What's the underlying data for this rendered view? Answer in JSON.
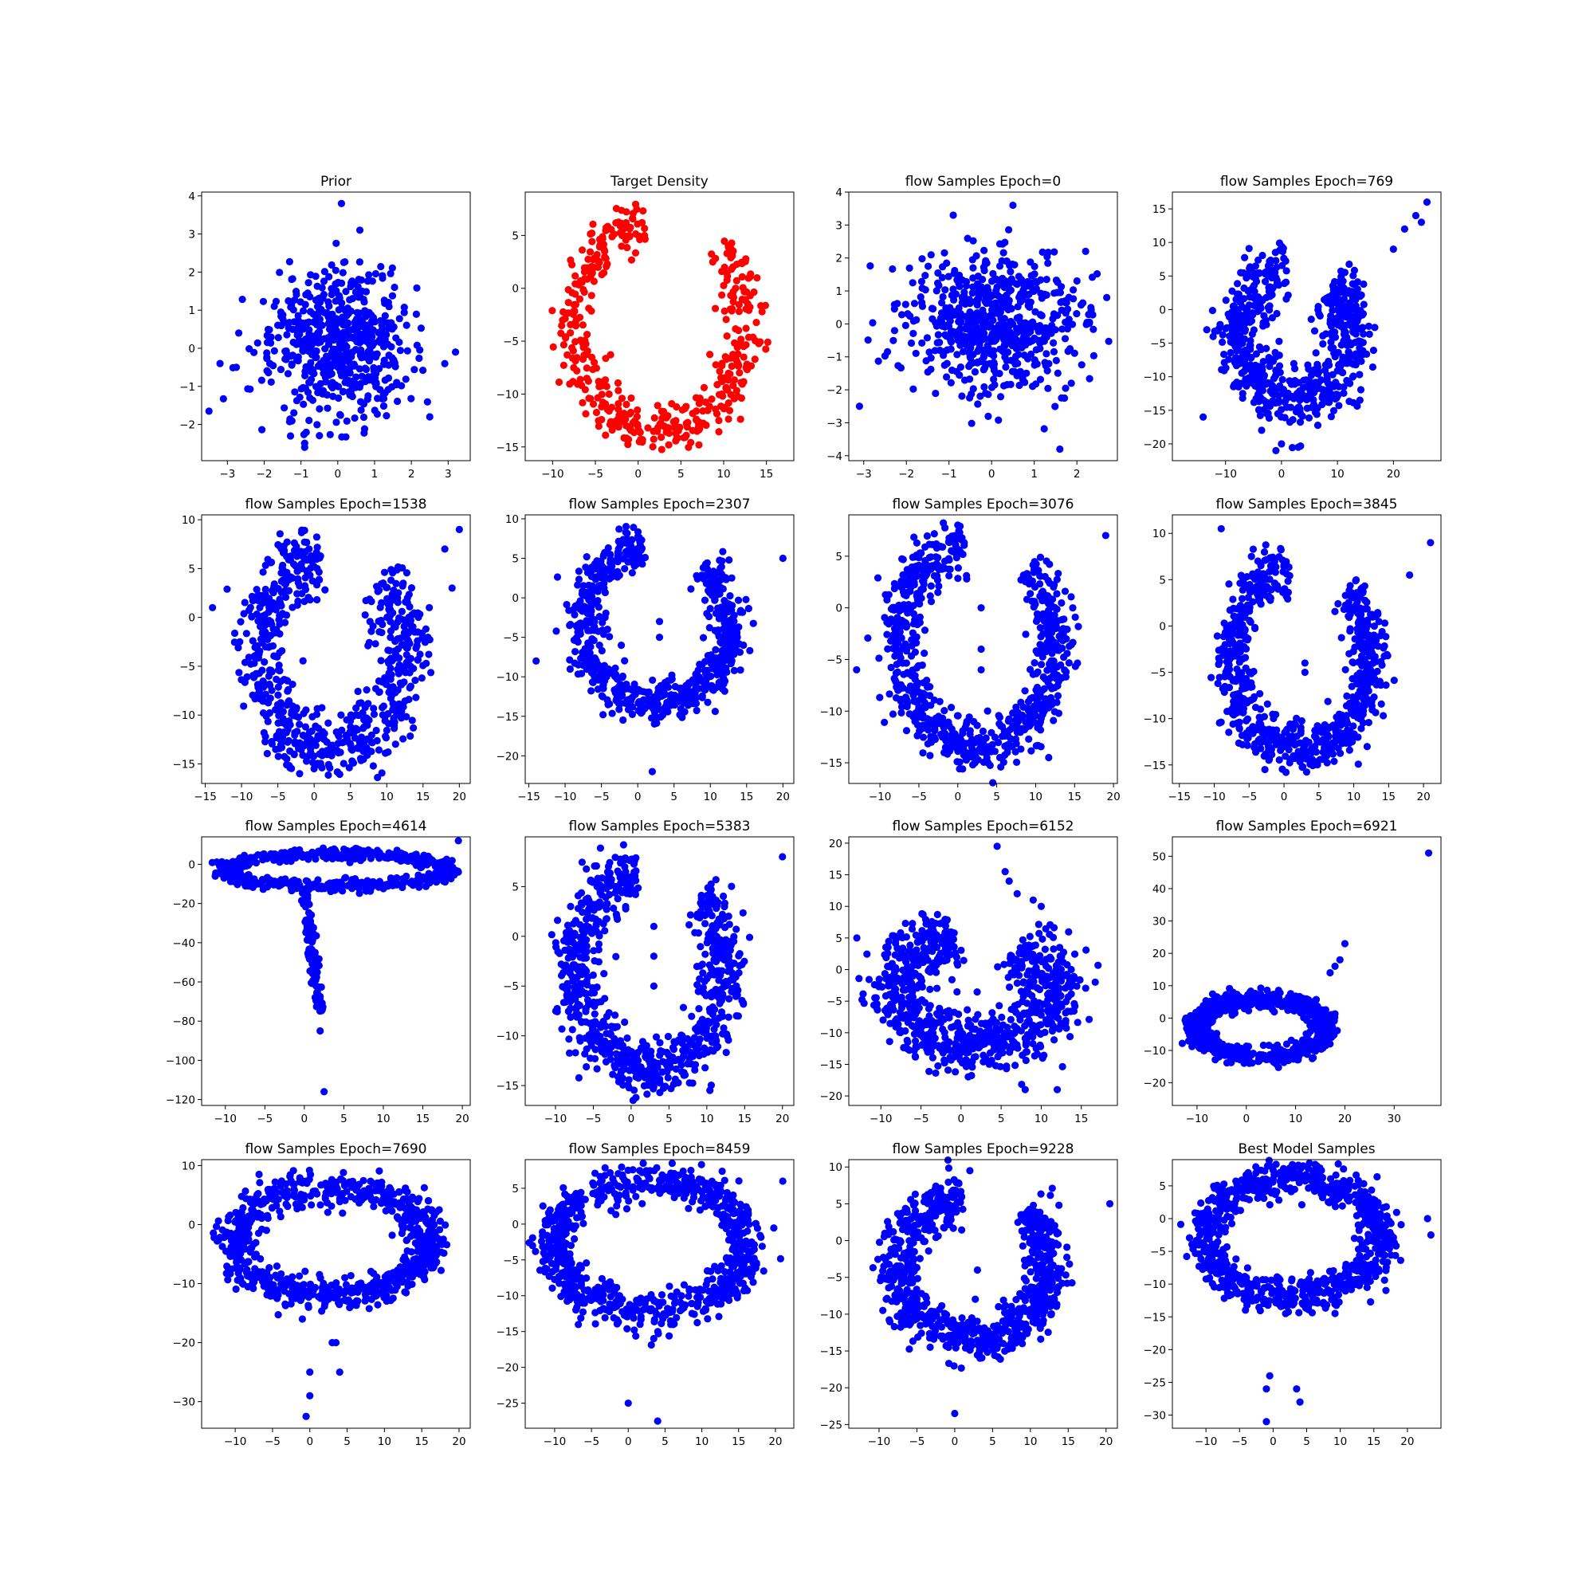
{
  "figure": {
    "background": "#ffffff",
    "point_colors": {
      "blue": "#0000ff",
      "red": "#ff0000"
    }
  },
  "chart_data": [
    {
      "type": "scatter",
      "title": "Prior",
      "xlabel": "",
      "ylabel": "",
      "color": "#0000ff",
      "xlim": [
        -3.7,
        3.6
      ],
      "ylim": [
        -2.95,
        4.1
      ],
      "xticks": [
        -3,
        -2,
        -1,
        0,
        1,
        2,
        3
      ],
      "yticks": [
        -2,
        -1,
        0,
        1,
        2,
        3,
        4
      ],
      "shape": "gaussian",
      "params": {
        "sd": 1,
        "n": 600,
        "seed": 1
      },
      "extra_points": [
        [
          0.1,
          3.8
        ],
        [
          -3.5,
          -1.65
        ],
        [
          3.2,
          -0.1
        ],
        [
          -0.9,
          -2.6
        ],
        [
          0.6,
          3.1
        ],
        [
          -3.2,
          -0.4
        ],
        [
          2.5,
          -1.8
        ]
      ]
    },
    {
      "type": "scatter",
      "title": "Target Density",
      "xlabel": "",
      "ylabel": "",
      "color": "#ff0000",
      "xlim": [
        -13.2,
        18.2
      ],
      "ylim": [
        -16.3,
        9.1
      ],
      "xticks": [
        -10,
        -5,
        0,
        5,
        10,
        15
      ],
      "yticks": [
        -15,
        -10,
        -5,
        0,
        5
      ],
      "shape": "arc",
      "params": {
        "spread": 1.2,
        "n": 450,
        "seed": 2
      }
    },
    {
      "type": "scatter",
      "title": "flow Samples Epoch=0",
      "xlabel": "",
      "ylabel": "",
      "color": "#0000ff",
      "xlim": [
        -3.35,
        2.95
      ],
      "ylim": [
        -4.15,
        4.0
      ],
      "xticks": [
        -3,
        -2,
        -1,
        0,
        1,
        2
      ],
      "yticks": [
        -4,
        -3,
        -2,
        -1,
        0,
        1,
        2,
        3,
        4
      ],
      "shape": "gaussian",
      "params": {
        "sd": 1,
        "n": 650,
        "seed": 3
      },
      "extra_points": [
        [
          0.5,
          3.6
        ],
        [
          -3.1,
          -2.5
        ],
        [
          1.6,
          -3.8
        ],
        [
          -0.9,
          3.3
        ],
        [
          2.7,
          0.8
        ]
      ]
    },
    {
      "type": "scatter",
      "title": "flow Samples Epoch=769",
      "xlabel": "",
      "ylabel": "",
      "color": "#0000ff",
      "xlim": [
        -19.5,
        28.5
      ],
      "ylim": [
        -22.5,
        17.5
      ],
      "xticks": [
        -10,
        0,
        10,
        20
      ],
      "yticks": [
        -20,
        -15,
        -10,
        -5,
        0,
        5,
        10,
        15
      ],
      "shape": "arc",
      "params": {
        "spread": 2.2,
        "n": 650,
        "seed": 4
      },
      "extra_points": [
        [
          26,
          16
        ],
        [
          24,
          14
        ],
        [
          22,
          12
        ],
        [
          25,
          13
        ],
        [
          20,
          9
        ],
        [
          0,
          -20
        ],
        [
          -1,
          -21
        ],
        [
          3,
          -20.5
        ],
        [
          -14,
          -16
        ]
      ]
    },
    {
      "type": "scatter",
      "title": "flow Samples Epoch=1538",
      "xlabel": "",
      "ylabel": "",
      "color": "#0000ff",
      "xlim": [
        -15.5,
        21.5
      ],
      "ylim": [
        -17.0,
        10.5
      ],
      "xticks": [
        -15,
        -10,
        -5,
        0,
        5,
        10,
        15,
        20
      ],
      "yticks": [
        -15,
        -10,
        -5,
        0,
        5,
        10
      ],
      "shape": "arc",
      "params": {
        "spread": 1.8,
        "n": 700,
        "seed": 5
      },
      "extra_points": [
        [
          20,
          9
        ],
        [
          18,
          7
        ],
        [
          -2,
          -16
        ],
        [
          -14,
          1
        ],
        [
          19,
          3
        ]
      ]
    },
    {
      "type": "scatter",
      "title": "flow Samples Epoch=2307",
      "xlabel": "",
      "ylabel": "",
      "color": "#0000ff",
      "xlim": [
        -15.5,
        21.5
      ],
      "ylim": [
        -23.5,
        10.5
      ],
      "xticks": [
        -15,
        -10,
        -5,
        0,
        5,
        10,
        15,
        20
      ],
      "yticks": [
        -20,
        -15,
        -10,
        -5,
        0,
        5,
        10
      ],
      "shape": "arc",
      "params": {
        "spread": 1.3,
        "n": 700,
        "seed": 6
      },
      "extra_points": [
        [
          2,
          -22
        ],
        [
          20,
          5
        ],
        [
          -14,
          -8
        ],
        [
          3,
          -3
        ],
        [
          3,
          -5
        ]
      ]
    },
    {
      "type": "scatter",
      "title": "flow Samples Epoch=3076",
      "xlabel": "",
      "ylabel": "",
      "color": "#0000ff",
      "xlim": [
        -14.0,
        20.5
      ],
      "ylim": [
        -17.0,
        9.0
      ],
      "xticks": [
        -10,
        -5,
        0,
        5,
        10,
        15,
        20
      ],
      "yticks": [
        -15,
        -10,
        -5,
        0,
        5
      ],
      "shape": "arc",
      "params": {
        "spread": 1.3,
        "n": 750,
        "seed": 7
      },
      "extra_points": [
        [
          3,
          -4
        ],
        [
          3,
          -6
        ],
        [
          3,
          0
        ],
        [
          19,
          7
        ],
        [
          -13,
          -6
        ]
      ]
    },
    {
      "type": "scatter",
      "title": "flow Samples Epoch=3845",
      "xlabel": "",
      "ylabel": "",
      "color": "#0000ff",
      "xlim": [
        -16.0,
        22.5
      ],
      "ylim": [
        -17.0,
        12.0
      ],
      "xticks": [
        -15,
        -10,
        -5,
        0,
        5,
        10,
        15,
        20
      ],
      "yticks": [
        -15,
        -10,
        -5,
        0,
        5,
        10
      ],
      "shape": "arc",
      "params": {
        "spread": 1.3,
        "n": 750,
        "seed": 8
      },
      "extra_points": [
        [
          -9,
          10.5
        ],
        [
          21,
          9
        ],
        [
          18,
          5.5
        ],
        [
          3,
          -4
        ],
        [
          3,
          -5
        ]
      ]
    },
    {
      "type": "scatter",
      "title": "flow Samples Epoch=4614",
      "xlabel": "",
      "ylabel": "",
      "color": "#0000ff",
      "xlim": [
        -13.0,
        21.0
      ],
      "ylim": [
        -123.0,
        14.0
      ],
      "xticks": [
        -10,
        -5,
        0,
        5,
        10,
        15,
        20
      ],
      "yticks": [
        -120,
        -100,
        -80,
        -60,
        -40,
        -20,
        0
      ],
      "shape": "ring_tail",
      "params": {
        "n": 700,
        "seed": 9
      },
      "extra_points": [
        [
          2.5,
          -116
        ],
        [
          2,
          -85
        ],
        [
          19.5,
          12
        ]
      ]
    },
    {
      "type": "scatter",
      "title": "flow Samples Epoch=5383",
      "xlabel": "",
      "ylabel": "",
      "color": "#0000ff",
      "xlim": [
        -14.0,
        21.5
      ],
      "ylim": [
        -17.0,
        10.0
      ],
      "xticks": [
        -10,
        -5,
        0,
        5,
        10,
        15,
        20
      ],
      "yticks": [
        -15,
        -10,
        -5,
        0,
        5
      ],
      "shape": "arc",
      "params": {
        "spread": 1.5,
        "n": 800,
        "seed": 10
      },
      "extra_points": [
        [
          20,
          8
        ],
        [
          3,
          -5
        ],
        [
          3,
          -2
        ],
        [
          3,
          1
        ]
      ]
    },
    {
      "type": "scatter",
      "title": "flow Samples Epoch=6152",
      "xlabel": "",
      "ylabel": "",
      "color": "#0000ff",
      "xlim": [
        -14.0,
        19.5
      ],
      "ylim": [
        -21.5,
        21.0
      ],
      "xticks": [
        -10,
        -5,
        0,
        5,
        10,
        15
      ],
      "yticks": [
        -20,
        -15,
        -10,
        -5,
        0,
        5,
        10,
        15,
        20
      ],
      "shape": "messy_arc",
      "params": {
        "n": 800,
        "seed": 11
      },
      "extra_points": [
        [
          4.5,
          19.5
        ],
        [
          5.5,
          15.5
        ],
        [
          6,
          14
        ],
        [
          7,
          12
        ],
        [
          9,
          11
        ],
        [
          10,
          10
        ],
        [
          -13,
          5
        ],
        [
          8,
          -19
        ],
        [
          12,
          -19
        ]
      ]
    },
    {
      "type": "scatter",
      "title": "flow Samples Epoch=6921",
      "xlabel": "",
      "ylabel": "",
      "color": "#0000ff",
      "xlim": [
        -15.0,
        39.5
      ],
      "ylim": [
        -27.0,
        56.0
      ],
      "xticks": [
        -10,
        0,
        10,
        20,
        30
      ],
      "yticks": [
        -20,
        -10,
        0,
        10,
        20,
        30,
        40,
        50
      ],
      "shape": "ring",
      "params": {
        "n": 700,
        "seed": 12
      },
      "extra_points": [
        [
          37,
          51
        ],
        [
          20,
          23
        ],
        [
          19,
          18
        ],
        [
          17,
          14
        ],
        [
          18,
          16
        ]
      ]
    },
    {
      "type": "scatter",
      "title": "flow Samples Epoch=7690",
      "xlabel": "",
      "ylabel": "",
      "color": "#0000ff",
      "xlim": [
        -14.5,
        21.5
      ],
      "ylim": [
        -34.5,
        11.0
      ],
      "xticks": [
        -10,
        -5,
        0,
        5,
        10,
        15,
        20
      ],
      "yticks": [
        -30,
        -20,
        -10,
        0,
        10
      ],
      "shape": "ring",
      "params": {
        "n": 800,
        "seed": 13
      },
      "extra_points": [
        [
          -0.5,
          -32.5
        ],
        [
          0,
          -29
        ],
        [
          0,
          -25
        ],
        [
          4,
          -25
        ],
        [
          3,
          -20
        ],
        [
          3.5,
          -20
        ],
        [
          -1,
          -16
        ]
      ]
    },
    {
      "type": "scatter",
      "title": "flow Samples Epoch=8459",
      "xlabel": "",
      "ylabel": "",
      "color": "#0000ff",
      "xlim": [
        -14.0,
        22.5
      ],
      "ylim": [
        -28.5,
        9.0
      ],
      "xticks": [
        -10,
        -5,
        0,
        5,
        10,
        15,
        20
      ],
      "yticks": [
        -25,
        -20,
        -15,
        -10,
        -5,
        0,
        5
      ],
      "shape": "ring",
      "params": {
        "n": 800,
        "seed": 14
      },
      "extra_points": [
        [
          4,
          -27.5
        ],
        [
          0,
          -25
        ],
        [
          21,
          6
        ],
        [
          -13,
          -3
        ]
      ]
    },
    {
      "type": "scatter",
      "title": "flow Samples Epoch=9228",
      "xlabel": "",
      "ylabel": "",
      "color": "#0000ff",
      "xlim": [
        -14.0,
        21.5
      ],
      "ylim": [
        -25.5,
        11.0
      ],
      "xticks": [
        -10,
        -5,
        0,
        5,
        10,
        15,
        20
      ],
      "yticks": [
        -25,
        -20,
        -15,
        -10,
        -5,
        0,
        5,
        10
      ],
      "shape": "arc",
      "params": {
        "spread": 1.5,
        "n": 800,
        "seed": 15
      },
      "extra_points": [
        [
          0,
          -23.5
        ],
        [
          2,
          9.5
        ],
        [
          20.5,
          5
        ],
        [
          3,
          -4
        ]
      ]
    },
    {
      "type": "scatter",
      "title": "Best Model Samples",
      "xlabel": "",
      "ylabel": "",
      "color": "#0000ff",
      "xlim": [
        -15.0,
        25.0
      ],
      "ylim": [
        -32.0,
        9.0
      ],
      "xticks": [
        -10,
        -5,
        0,
        5,
        10,
        15,
        20
      ],
      "yticks": [
        -30,
        -25,
        -20,
        -15,
        -10,
        -5,
        0,
        5
      ],
      "shape": "ring",
      "params": {
        "n": 850,
        "seed": 16
      },
      "extra_points": [
        [
          -1,
          -31
        ],
        [
          -1,
          -26
        ],
        [
          -0.5,
          -24
        ],
        [
          4,
          -28
        ],
        [
          3.5,
          -26
        ],
        [
          23.5,
          -2.5
        ],
        [
          23,
          0
        ]
      ]
    }
  ]
}
